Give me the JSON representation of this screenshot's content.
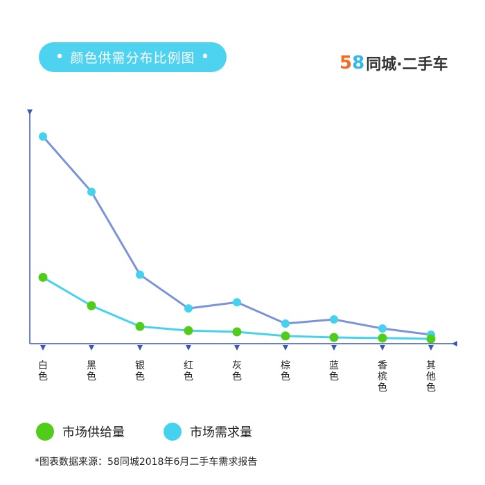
{
  "header": {
    "title": "颜色供需分布比例图",
    "title_dot": "•",
    "brand_5": "5",
    "brand_8": "8",
    "brand_name": "同城·二手车"
  },
  "legend": {
    "supply_label": "市场供给量",
    "demand_label": "市场需求量"
  },
  "footnote": "*图表数据来源：58同城2018年6月二手车需求报告",
  "colors": {
    "supply": "#52cc1a",
    "demand": "#45d2ef",
    "supply_line": "#45d2ef",
    "demand_line": "#7a93d9",
    "axis": "#3b57b5",
    "pill": "#4dd3f0"
  },
  "chart_data": {
    "type": "line",
    "categories": [
      "白色",
      "黑色",
      "银色",
      "红色",
      "灰色",
      "棕色",
      "蓝色",
      "香槟色",
      "其他色"
    ],
    "series": [
      {
        "name": "市场需求量",
        "values": [
          100,
          73.3,
          33.3,
          17,
          20,
          9.7,
          11.7,
          7.3,
          4.3
        ]
      },
      {
        "name": "市场供给量",
        "values": [
          32,
          18.3,
          8.3,
          6.3,
          5.7,
          3.7,
          3,
          2.7,
          2.3
        ]
      }
    ],
    "ylim": [
      0,
      100
    ],
    "grid": false,
    "legend_position": "bottom-left"
  }
}
